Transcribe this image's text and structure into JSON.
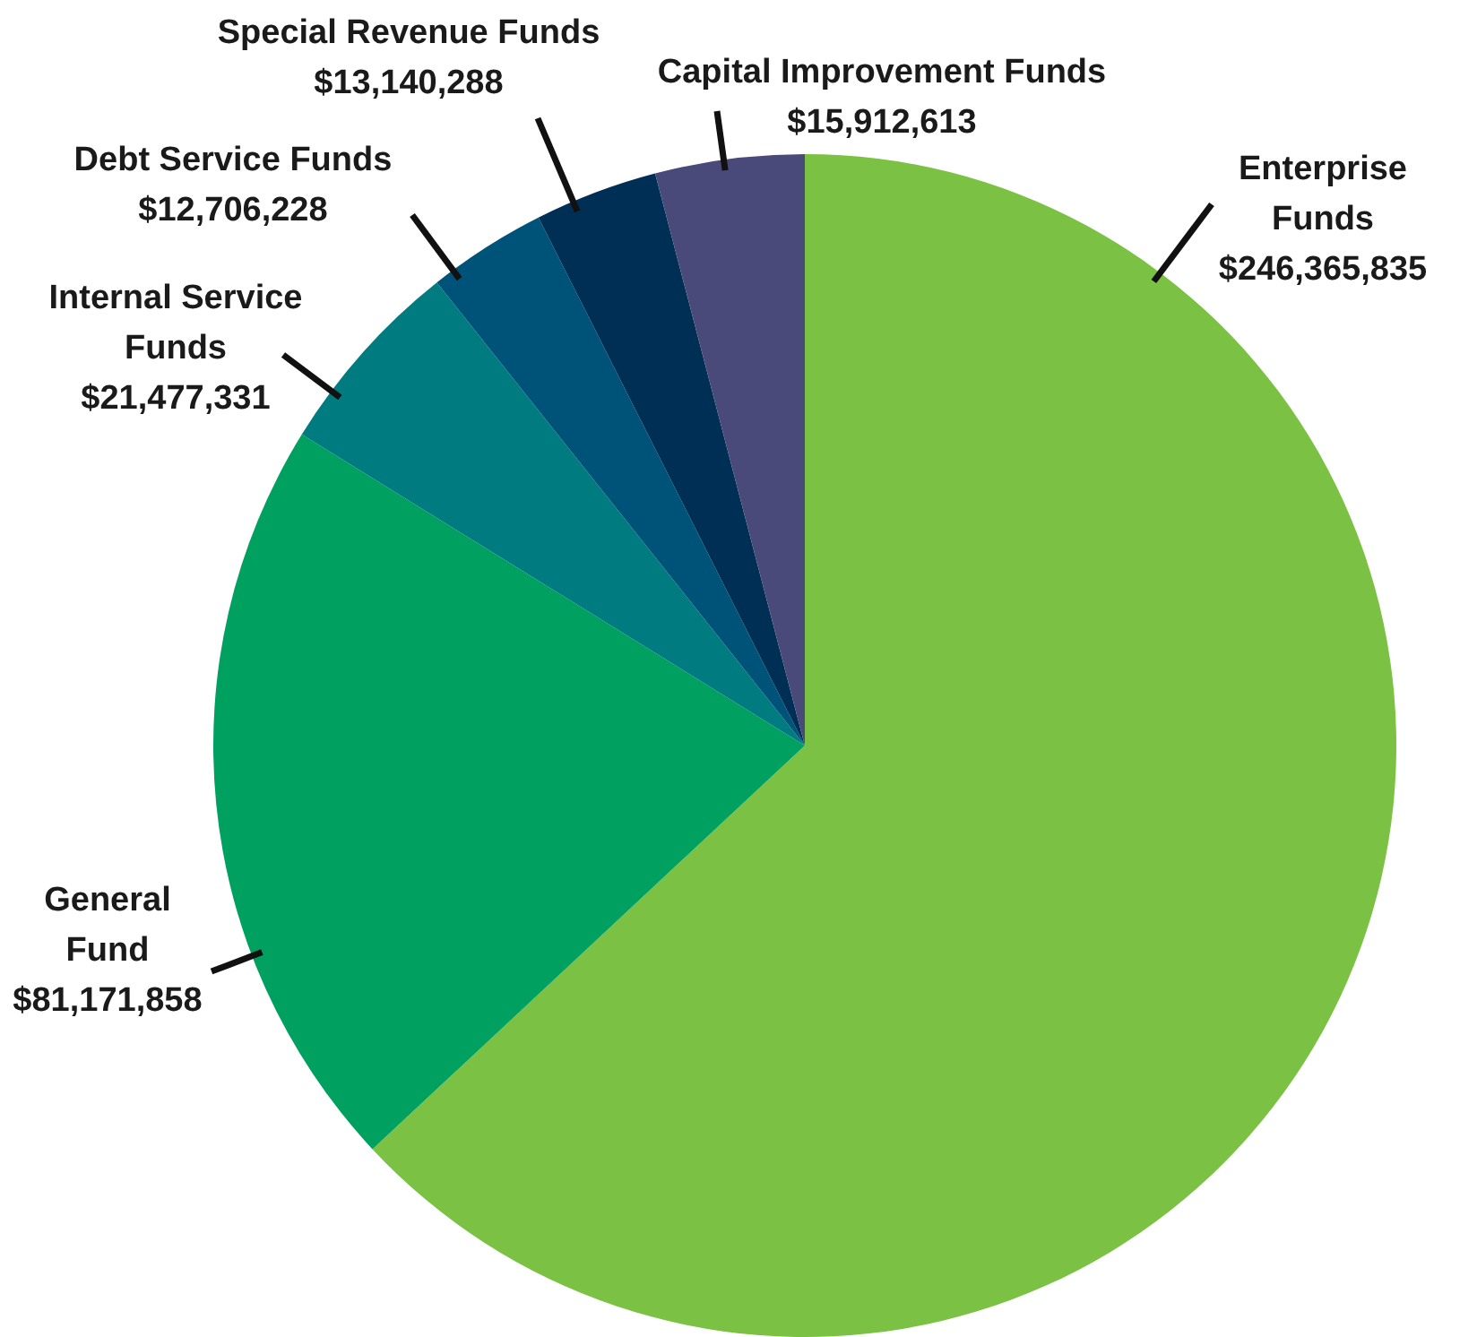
{
  "chart_data": {
    "type": "pie",
    "categories": [
      "Enterprise Funds",
      "General Fund",
      "Internal Service Funds",
      "Debt Service Funds",
      "Special Revenue Funds",
      "Capital Improvement Funds"
    ],
    "values": [
      246365835,
      81171858,
      21477331,
      12706228,
      13140288,
      15912613
    ],
    "value_labels": [
      "$246,365,835",
      "$81,171,858",
      "$21,477,331",
      "$12,706,228",
      "$13,140,288",
      "$15,912,613"
    ],
    "colors": [
      "#7bc143",
      "#00a160",
      "#007c80",
      "#005378",
      "#002f56",
      "#4a4a7a"
    ]
  }
}
